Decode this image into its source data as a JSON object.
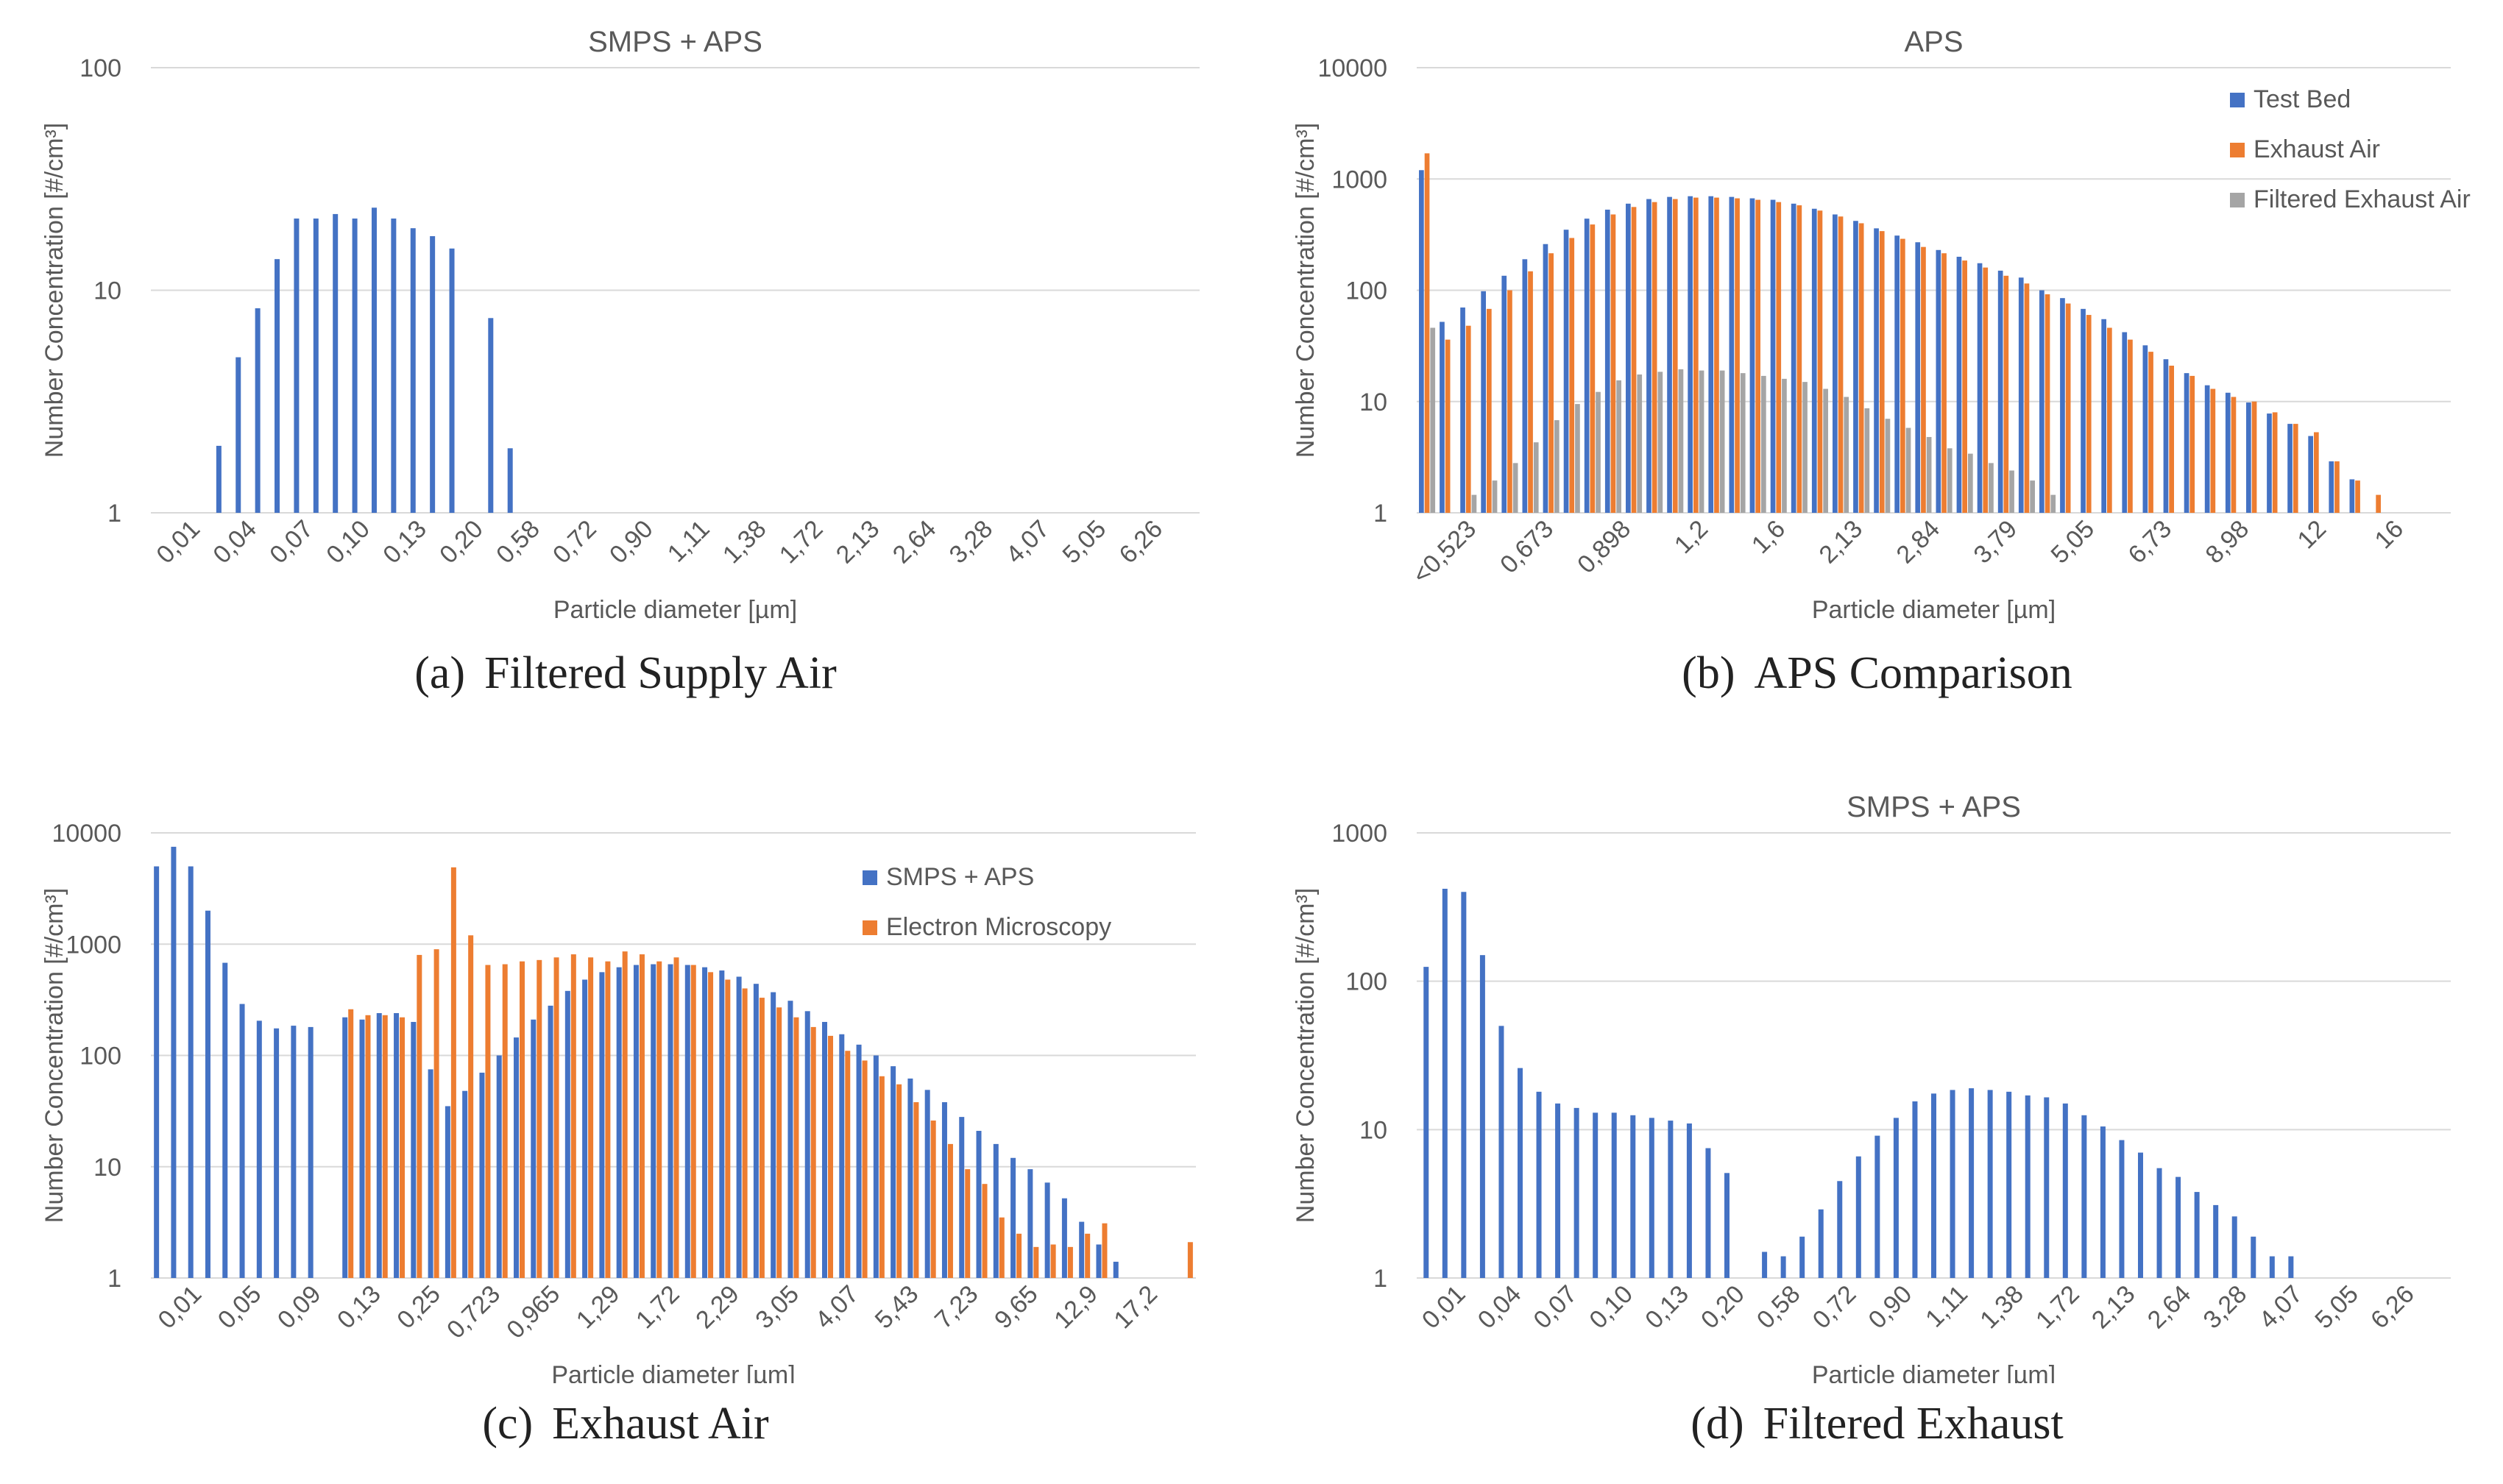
{
  "colors": {
    "blue": "#4472C4",
    "orange": "#ED7D31",
    "gray": "#A5A5A5"
  },
  "captions": [
    {
      "label": "(a)",
      "text": "Filtered Supply Air"
    },
    {
      "label": "(b)",
      "text": "APS Comparison"
    },
    {
      "label": "(c)",
      "text": "Exhaust Air"
    },
    {
      "label": "(d)",
      "text": "Filtered Exhaust"
    }
  ],
  "chart_data": [
    {
      "id": "a",
      "type": "bar",
      "title": "SMPS + APS",
      "xlabel": "Particle diameter [µm]",
      "ylabel": "Number Concentration [#/cm³]",
      "yscale": "log",
      "ylim": [
        1,
        100
      ],
      "yticks": [
        "1",
        "10",
        "100"
      ],
      "x_ticks": [
        "0,01",
        "0,04",
        "0,07",
        "0,10",
        "0,13",
        "0,20",
        "0,58",
        "0,72",
        "0,90",
        "1,11",
        "1,38",
        "1,72",
        "2,13",
        "2,64",
        "3,28",
        "4,07",
        "5,05",
        "6,26"
      ],
      "series": [
        {
          "name": "SMPS + APS",
          "color": "#4472C4",
          "values": [
            null,
            null,
            null,
            2,
            5,
            8.3,
            13.8,
            21,
            21,
            22,
            21,
            23.5,
            21,
            19,
            17.5,
            15.4,
            null,
            7.5,
            1.95,
            null,
            null,
            null,
            null,
            null,
            null,
            null,
            null,
            null,
            null,
            null,
            null,
            null,
            null,
            null,
            null,
            null,
            null,
            null,
            null,
            null,
            null,
            null,
            null,
            null,
            null,
            null,
            null,
            null,
            null,
            null,
            null,
            null,
            null,
            null
          ]
        }
      ]
    },
    {
      "id": "b",
      "type": "bar",
      "title": "APS",
      "xlabel": "Particle diameter [µm]",
      "ylabel": "Number Concentration [#/cm³]",
      "yscale": "log",
      "ylim": [
        1,
        10000
      ],
      "yticks": [
        "1",
        "10",
        "100",
        "1000",
        "10000"
      ],
      "x_ticks": [
        "<0,523",
        "0,673",
        "0,898",
        "1,2",
        "1,6",
        "2,13",
        "2,84",
        "3,79",
        "5,05",
        "6,73",
        "8,98",
        "12",
        "16"
      ],
      "legend": [
        "Test Bed",
        "Exhaust Air",
        "Filtered Exhaust Air"
      ],
      "series": [
        {
          "name": "Test Bed",
          "color": "#4472C4",
          "values": [
            1200,
            52,
            70,
            98,
            135,
            190,
            260,
            350,
            440,
            530,
            600,
            660,
            690,
            700,
            700,
            690,
            670,
            650,
            600,
            540,
            480,
            420,
            360,
            310,
            270,
            230,
            200,
            175,
            150,
            130,
            100,
            85,
            68,
            55,
            42,
            32,
            24,
            18,
            14,
            12,
            9.8,
            7.8,
            6.3,
            4.9,
            2.9,
            2.0,
            null,
            null,
            null,
            null
          ]
        },
        {
          "name": "Exhaust Air",
          "color": "#ED7D31",
          "values": [
            1700,
            36,
            48,
            68,
            100,
            148,
            215,
            295,
            390,
            480,
            560,
            620,
            660,
            680,
            680,
            670,
            650,
            620,
            580,
            520,
            460,
            400,
            340,
            290,
            245,
            215,
            185,
            160,
            135,
            115,
            92,
            76,
            60,
            46,
            36,
            28,
            21,
            17,
            13,
            11,
            10,
            8,
            6.3,
            5.3,
            2.9,
            1.95,
            1.45,
            null,
            null,
            null
          ]
        },
        {
          "name": "Filtered Exhaust Air",
          "color": "#A5A5A5",
          "values": [
            46,
            null,
            1.45,
            1.95,
            2.8,
            4.3,
            6.8,
            9.5,
            12.2,
            15.5,
            17.5,
            18.5,
            19.5,
            19,
            19,
            18,
            17,
            16,
            15,
            13,
            11,
            8.7,
            7,
            5.8,
            4.8,
            3.8,
            3.4,
            2.8,
            2.4,
            1.95,
            1.45,
            null,
            null,
            null,
            null,
            null,
            null,
            null,
            null,
            null,
            null,
            null,
            null,
            null,
            null,
            null,
            null,
            null,
            null,
            null
          ]
        }
      ]
    },
    {
      "id": "c",
      "type": "bar",
      "title": "",
      "xlabel": "Particle diameter [µm]",
      "ylabel": "Number Concentration [#/cm³]",
      "yscale": "log",
      "ylim": [
        1,
        10000
      ],
      "yticks": [
        "1",
        "10",
        "100",
        "1000",
        "10000"
      ],
      "x_ticks": [
        "0,01",
        "0,05",
        "0,09",
        "0,13",
        "0,25",
        "0,723",
        "0,965",
        "1,29",
        "1,72",
        "2,29",
        "3,05",
        "4,07",
        "5,43",
        "7,23",
        "9,65",
        "12,9",
        "17,2"
      ],
      "legend": [
        "SMPS + APS",
        "Electron Microscopy"
      ],
      "series": [
        {
          "name": "SMPS + APS",
          "color": "#4472C4",
          "values": [
            5000,
            7500,
            5000,
            2000,
            680,
            290,
            205,
            175,
            185,
            180,
            null,
            220,
            210,
            240,
            240,
            200,
            75,
            35,
            48,
            70,
            100,
            145,
            210,
            280,
            380,
            480,
            560,
            620,
            650,
            660,
            660,
            650,
            620,
            580,
            510,
            440,
            370,
            310,
            250,
            200,
            155,
            125,
            100,
            80,
            62,
            49,
            38,
            28,
            21,
            16,
            12,
            9.5,
            7.2,
            5.2,
            3.2,
            2.0,
            1.4,
            null,
            null,
            null,
            null
          ]
        },
        {
          "name": "Electron Microscopy",
          "color": "#ED7D31",
          "values": [
            null,
            null,
            null,
            null,
            null,
            null,
            null,
            null,
            null,
            null,
            null,
            260,
            230,
            230,
            220,
            800,
            900,
            4900,
            1200,
            650,
            660,
            700,
            720,
            760,
            810,
            760,
            700,
            860,
            810,
            700,
            760,
            650,
            560,
            480,
            400,
            330,
            270,
            220,
            180,
            150,
            110,
            90,
            65,
            55,
            38,
            26,
            16,
            9.5,
            7,
            3.5,
            2.5,
            1.9,
            2.0,
            1.9,
            2.5,
            3.1,
            null,
            null,
            null,
            null,
            2.1
          ]
        }
      ]
    },
    {
      "id": "d",
      "type": "bar",
      "title": "SMPS + APS",
      "xlabel": "Particle diameter [µm]",
      "ylabel": "Number Concentration [#/cm³]",
      "yscale": "log",
      "ylim": [
        1,
        1000
      ],
      "yticks": [
        "1",
        "10",
        "100",
        "1000"
      ],
      "x_ticks": [
        "0,01",
        "0,04",
        "0,07",
        "0,10",
        "0,13",
        "0,20",
        "0,58",
        "0,72",
        "0,90",
        "1,11",
        "1,38",
        "1,72",
        "2,13",
        "2,64",
        "3,28",
        "4,07",
        "5,05",
        "6,26"
      ],
      "series": [
        {
          "name": "SMPS + APS",
          "color": "#4472C4",
          "values": [
            125,
            420,
            400,
            150,
            50,
            26,
            18,
            15,
            14,
            13,
            13,
            12.5,
            12,
            11.5,
            11,
            7.5,
            5.1,
            null,
            1.5,
            1.4,
            1.9,
            2.9,
            4.5,
            6.6,
            9.1,
            12,
            15.5,
            17.5,
            18.5,
            19,
            18.5,
            18,
            17,
            16.5,
            15,
            12.5,
            10.5,
            8.5,
            7,
            5.5,
            4.8,
            3.8,
            3.1,
            2.6,
            1.9,
            1.4,
            1.4,
            null,
            null,
            null,
            null,
            null,
            null,
            null,
            null
          ]
        }
      ]
    }
  ]
}
